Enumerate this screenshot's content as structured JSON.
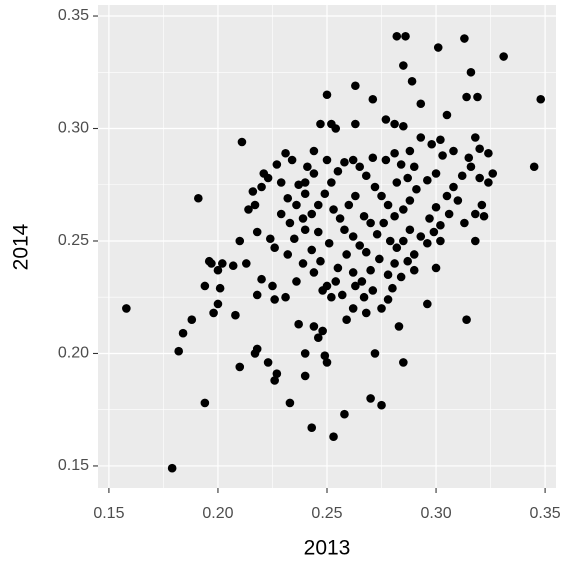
{
  "chart_data": {
    "type": "scatter",
    "x_label": "2013",
    "y_label": "2014",
    "xlim": [
      0.145,
      0.355
    ],
    "ylim": [
      0.1402,
      0.3549
    ],
    "xticks": [
      0.15,
      {
        "value": 0.2,
        "label": "0.20"
      },
      0.25,
      {
        "value": 0.3,
        "label": "0.30"
      },
      0.35
    ],
    "yticks": [
      0.15,
      {
        "value": 0.2,
        "label": "0.20"
      },
      0.25,
      {
        "value": 0.3,
        "label": "0.30"
      },
      0.35
    ],
    "grid": true,
    "color": "#000000",
    "x": [
      0.282,
      0.286,
      0.301,
      0.313,
      0.331,
      0.348,
      0.316,
      0.285,
      0.289,
      0.314,
      0.319,
      0.263,
      0.25,
      0.271,
      0.293,
      0.305,
      0.277,
      0.281,
      0.285,
      0.252,
      0.254,
      0.263,
      0.345,
      0.211,
      0.318,
      0.32,
      0.324,
      0.315,
      0.298,
      0.302,
      0.158,
      0.179,
      0.182,
      0.184,
      0.191,
      0.194,
      0.194,
      0.196,
      0.198,
      0.2,
      0.253,
      0.243,
      0.258,
      0.27,
      0.275,
      0.233,
      0.226,
      0.227,
      0.24,
      0.223,
      0.21,
      0.217,
      0.218,
      0.24,
      0.249,
      0.25,
      0.272,
      0.285,
      0.296,
      0.3,
      0.314,
      0.283,
      0.244,
      0.248,
      0.246,
      0.237,
      0.259,
      0.262,
      0.268,
      0.275,
      0.252,
      0.25,
      0.248,
      0.254,
      0.226,
      0.231,
      0.225,
      0.208,
      0.218,
      0.22,
      0.213,
      0.207,
      0.2,
      0.201,
      0.21,
      0.218,
      0.224,
      0.226,
      0.232,
      0.235,
      0.24,
      0.243,
      0.239,
      0.236,
      0.244,
      0.247,
      0.255,
      0.259,
      0.262,
      0.266,
      0.27,
      0.274,
      0.278,
      0.28,
      0.284,
      0.287,
      0.29,
      0.293,
      0.296,
      0.299,
      0.302,
      0.306,
      0.31,
      0.313,
      0.318,
      0.321,
      0.318,
      0.305,
      0.308,
      0.312,
      0.316,
      0.32,
      0.324,
      0.3,
      0.296,
      0.291,
      0.288,
      0.285,
      0.281,
      0.278,
      0.275,
      0.272,
      0.268,
      0.265,
      0.262,
      0.258,
      0.255,
      0.252,
      0.249,
      0.246,
      0.243,
      0.24,
      0.237,
      0.234,
      0.231,
      0.227,
      0.223,
      0.22,
      0.216,
      0.214,
      0.217,
      0.221,
      0.236,
      0.239,
      0.233,
      0.229,
      0.241,
      0.244,
      0.25,
      0.253,
      0.256,
      0.26,
      0.263,
      0.267,
      0.27,
      0.273,
      0.276,
      0.279,
      0.282,
      0.277,
      0.281,
      0.284,
      0.287,
      0.282,
      0.271,
      0.262,
      0.265,
      0.268,
      0.258,
      0.251,
      0.246,
      0.257,
      0.263,
      0.267,
      0.271,
      0.278,
      0.281,
      0.29,
      0.297,
      0.288,
      0.285,
      0.3,
      0.29,
      0.288,
      0.293,
      0.303,
      0.308,
      0.326,
      0.322,
      0.302,
      0.188,
      0.197,
      0.202,
      0.232,
      0.229,
      0.24,
      0.244,
      0.247
    ],
    "values": [
      0.341,
      0.341,
      0.336,
      0.34,
      0.332,
      0.313,
      0.325,
      0.328,
      0.321,
      0.314,
      0.314,
      0.319,
      0.315,
      0.313,
      0.311,
      0.306,
      0.304,
      0.302,
      0.301,
      0.302,
      0.3,
      0.302,
      0.283,
      0.294,
      0.296,
      0.291,
      0.289,
      0.287,
      0.293,
      0.295,
      0.22,
      0.149,
      0.201,
      0.209,
      0.269,
      0.178,
      0.23,
      0.241,
      0.218,
      0.222,
      0.163,
      0.167,
      0.173,
      0.18,
      0.177,
      0.178,
      0.188,
      0.191,
      0.19,
      0.196,
      0.194,
      0.2,
      0.202,
      0.2,
      0.199,
      0.196,
      0.2,
      0.196,
      0.222,
      0.238,
      0.215,
      0.212,
      0.212,
      0.21,
      0.207,
      0.213,
      0.215,
      0.22,
      0.218,
      0.22,
      0.225,
      0.23,
      0.228,
      0.232,
      0.224,
      0.225,
      0.23,
      0.217,
      0.226,
      0.233,
      0.24,
      0.239,
      0.237,
      0.229,
      0.25,
      0.254,
      0.251,
      0.247,
      0.244,
      0.251,
      0.255,
      0.246,
      0.24,
      0.232,
      0.236,
      0.241,
      0.238,
      0.244,
      0.236,
      0.232,
      0.237,
      0.242,
      0.235,
      0.229,
      0.234,
      0.241,
      0.244,
      0.252,
      0.249,
      0.254,
      0.257,
      0.262,
      0.268,
      0.258,
      0.262,
      0.266,
      0.25,
      0.27,
      0.274,
      0.279,
      0.283,
      0.278,
      0.276,
      0.28,
      0.277,
      0.273,
      0.268,
      0.264,
      0.261,
      0.266,
      0.27,
      0.274,
      0.279,
      0.283,
      0.286,
      0.285,
      0.281,
      0.276,
      0.271,
      0.266,
      0.262,
      0.271,
      0.275,
      0.286,
      0.289,
      0.284,
      0.278,
      0.274,
      0.272,
      0.264,
      0.266,
      0.28,
      0.266,
      0.26,
      0.258,
      0.262,
      0.283,
      0.29,
      0.286,
      0.264,
      0.26,
      0.266,
      0.27,
      0.261,
      0.258,
      0.253,
      0.258,
      0.25,
      0.247,
      0.286,
      0.289,
      0.284,
      0.278,
      0.276,
      0.287,
      0.252,
      0.248,
      0.245,
      0.255,
      0.249,
      0.254,
      0.226,
      0.23,
      0.225,
      0.228,
      0.224,
      0.24,
      0.237,
      0.26,
      0.255,
      0.25,
      0.265,
      0.283,
      0.29,
      0.296,
      0.288,
      0.29,
      0.28,
      0.261,
      0.25,
      0.215,
      0.24,
      0.24,
      0.269,
      0.276,
      0.276,
      0.28,
      0.302
    ]
  }
}
